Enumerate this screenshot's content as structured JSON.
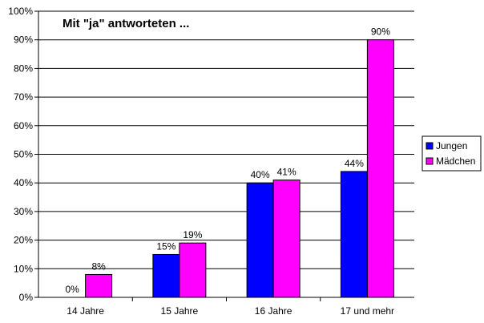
{
  "chart_data": {
    "type": "bar",
    "title": "Mit \"ja\" antworteten ...",
    "categories": [
      "14 Jahre",
      "15 Jahre",
      "16 Jahre",
      "17 und mehr"
    ],
    "series": [
      {
        "name": "Jungen",
        "values": [
          0,
          15,
          40,
          44
        ],
        "labels": [
          "0%",
          "15%",
          "40%",
          "44%"
        ],
        "color": "#0000FF"
      },
      {
        "name": "Mädchen",
        "values": [
          8,
          19,
          41,
          90
        ],
        "labels": [
          "8%",
          "19%",
          "41%",
          "90%"
        ],
        "color": "#FF00FF"
      }
    ],
    "ylim": [
      0,
      100
    ],
    "yticks": [
      "0%",
      "10%",
      "20%",
      "30%",
      "40%",
      "50%",
      "60%",
      "70%",
      "80%",
      "90%",
      "100%"
    ],
    "grid": true,
    "legend": "right"
  }
}
